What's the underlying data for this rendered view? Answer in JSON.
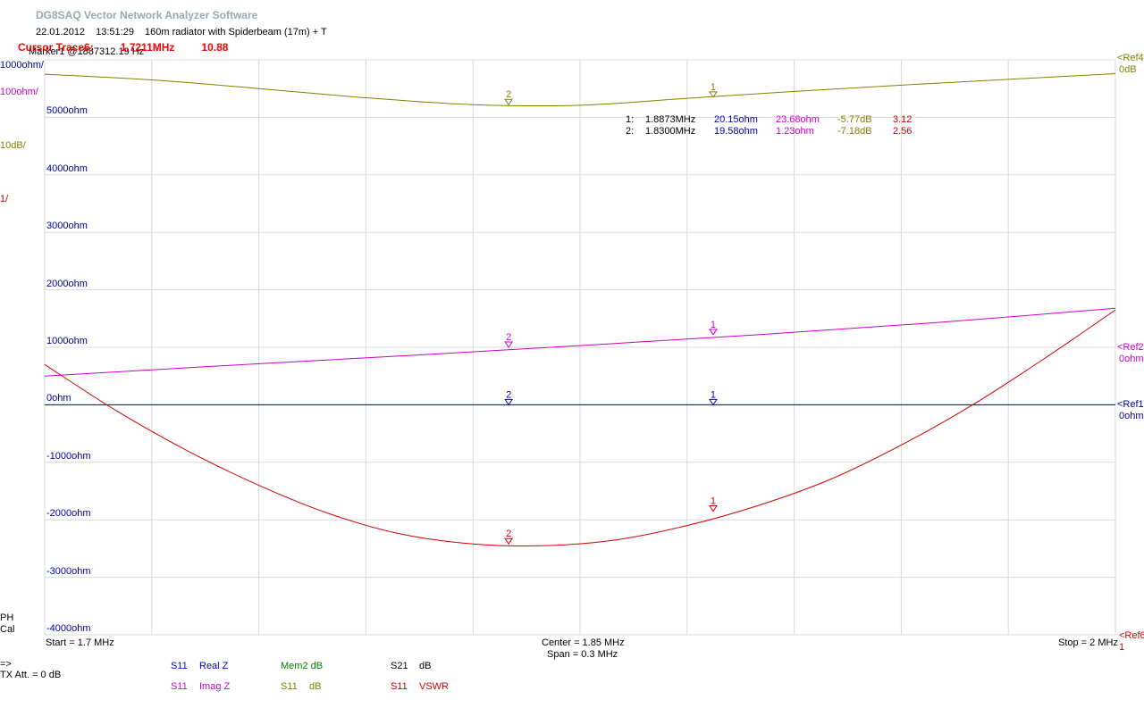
{
  "app": {
    "title": "DG8SAQ Vector Network Analyzer Software"
  },
  "info": {
    "date": "22.01.2012",
    "time": "13:51:29",
    "description": "160m radiator with Spiderbeam (17m) + T"
  },
  "marker_readout": "Marker1 @1887312.19 Hz",
  "cursor": {
    "label": "Cursor Trace6:",
    "freq": "1.7211MHz",
    "value": "10.88"
  },
  "scales": [
    {
      "text": "1000ohm/",
      "color": "#0000a0"
    },
    {
      "text": "100ohm/",
      "color": "#cc00cc"
    },
    {
      "text": "10dB/",
      "color": "#808000"
    },
    {
      "text": "1/",
      "color": "#cc0000"
    }
  ],
  "status": {
    "ph": "PH",
    "cal": "Cal",
    "arrow": "=>",
    "tx_att": "TX Att.   = 0 dB"
  },
  "refs": [
    {
      "name": "<Ref4",
      "value": "0dB",
      "color": "#808000"
    },
    {
      "name": "<Ref2",
      "value": "0ohm",
      "color": "#cc00cc"
    },
    {
      "name": "<Ref1",
      "value": "0ohm",
      "color": "#0000a0"
    },
    {
      "name": "<Ref6",
      "value": "1",
      "color": "#cc0000"
    }
  ],
  "freq_axis": {
    "start": "Start = 1.7 MHz",
    "center": "Center = 1.85 MHz",
    "span": "Span = 0.3 MHz",
    "stop": "Stop = 2 MHz"
  },
  "legend": [
    {
      "param": "S11",
      "name": "Real Z",
      "color": "#0000c8"
    },
    {
      "param": "",
      "name": "Mem2 dB",
      "color": "#008000"
    },
    {
      "param": "S21",
      "name": "dB",
      "color": "#000000"
    },
    {
      "param": "S11",
      "name": "Imag Z",
      "color": "#cc00cc"
    },
    {
      "param": "S11",
      "name": "dB",
      "color": "#808000"
    },
    {
      "param": "S11",
      "name": "VSWR",
      "color": "#cc0000"
    }
  ],
  "marker_table": [
    {
      "id": "1:",
      "freq": "1.8873MHz",
      "real": "20.15ohm",
      "imag": "23.68ohm",
      "db": "-5.77dB",
      "vswr": "3.12"
    },
    {
      "id": "2:",
      "freq": "1.8300MHz",
      "real": "19.58ohm",
      "imag": "1.23ohm",
      "db": "-7.18dB",
      "vswr": "2.56"
    }
  ],
  "colors": {
    "grid": "#d8d8d8",
    "real_z": "#0000c8",
    "imag_z": "#cc00cc",
    "s11_db": "#808000",
    "vswr": "#cc0000",
    "table_freq": "#000000"
  },
  "chart_data": {
    "type": "line",
    "x_unit": "MHz",
    "xlim": [
      1.7,
      2.0
    ],
    "ylim": [
      -4000,
      6000
    ],
    "grid": true,
    "y_tick_labels": [
      "5000ohm",
      "4000ohm",
      "3000ohm",
      "2000ohm",
      "1000ohm",
      "0ohm",
      "-1000ohm",
      "-2000ohm",
      "-3000ohm",
      "-4000ohm"
    ],
    "series": [
      {
        "name": "S11 Real Z",
        "color": "#0000c8",
        "x": [
          1.7,
          1.75,
          1.8,
          1.85,
          1.9,
          1.95,
          2.0
        ],
        "y": [
          0,
          0,
          0,
          0,
          0,
          0,
          0
        ],
        "markers": [
          {
            "label": "1",
            "x": 1.8873,
            "y": 0
          },
          {
            "label": "2",
            "x": 1.83,
            "y": 0
          }
        ]
      },
      {
        "name": "S11 Imag Z",
        "color": "#cc00cc",
        "x": [
          1.7,
          1.75,
          1.8,
          1.85,
          1.9,
          1.95,
          2.0
        ],
        "y": [
          500,
          680,
          850,
          1030,
          1220,
          1430,
          1680
        ],
        "markers": [
          {
            "label": "1",
            "x": 1.8873,
            "y": 1220
          },
          {
            "label": "2",
            "x": 1.83,
            "y": 1000
          }
        ]
      },
      {
        "name": "S11 dB",
        "color": "#808000",
        "x": [
          1.7,
          1.73,
          1.76,
          1.79,
          1.82,
          1.85,
          1.88,
          1.91,
          1.94,
          1.97,
          2.0
        ],
        "y": [
          5750,
          5650,
          5500,
          5340,
          5220,
          5210,
          5330,
          5450,
          5560,
          5660,
          5760
        ],
        "markers": [
          {
            "label": "1",
            "x": 1.8873,
            "y": 5350
          },
          {
            "label": "2",
            "x": 1.83,
            "y": 5220
          }
        ]
      },
      {
        "name": "S11 VSWR",
        "color": "#cc0000",
        "x": [
          1.7,
          1.72,
          1.74,
          1.76,
          1.78,
          1.8,
          1.82,
          1.84,
          1.86,
          1.88,
          1.9,
          1.92,
          1.94,
          1.96,
          1.98,
          2.0
        ],
        "y": [
          700,
          -100,
          -800,
          -1400,
          -1900,
          -2250,
          -2420,
          -2450,
          -2350,
          -2100,
          -1750,
          -1300,
          -700,
          0,
          800,
          1650
        ],
        "markers": [
          {
            "label": "1",
            "x": 1.8873,
            "y": -1850
          },
          {
            "label": "2",
            "x": 1.83,
            "y": -2420
          }
        ]
      }
    ]
  }
}
